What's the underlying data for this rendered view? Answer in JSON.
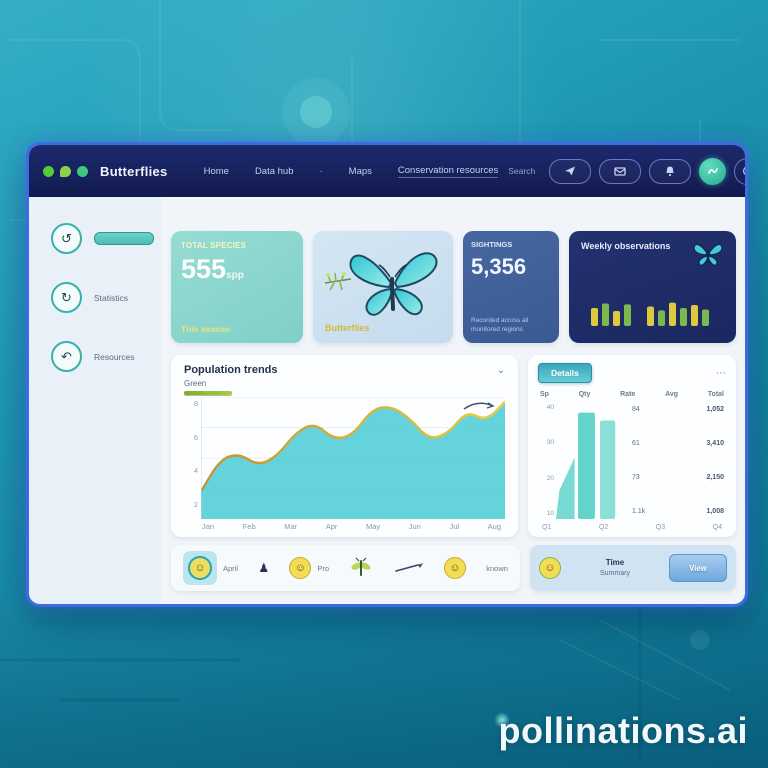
{
  "watermark": "pollinations.ai",
  "navbar": {
    "logo": "Butterflies",
    "links": [
      {
        "label": "Home"
      },
      {
        "label": "Data hub"
      },
      {
        "label": "·"
      },
      {
        "label": "Maps"
      },
      {
        "label": "Conservation resources"
      }
    ],
    "search_label": "Search"
  },
  "sidebar": {
    "items": [
      {
        "label": ""
      },
      {
        "label": "Statistics"
      },
      {
        "label": "Resources"
      }
    ]
  },
  "cards": {
    "species": {
      "title": "TOTAL SPECIES",
      "value": "555",
      "unit": "spp",
      "footer": "This season"
    },
    "butterfly": {
      "label": "Butterflies"
    },
    "sightings": {
      "title": "SIGHTINGS",
      "value": "5,356",
      "line1": "Recorded across all",
      "line2": "monitored regions"
    },
    "weekly": {
      "title": "Weekly observations"
    }
  },
  "chart_panel": {
    "title": "Population trends",
    "legend": "Green",
    "menu_icon": "⌄"
  },
  "right_panel": {
    "button": "Details",
    "menu_icon": "⋯",
    "headers": [
      "Sp",
      "Qty",
      "Rate",
      "Avg",
      "Total"
    ],
    "ylabels": [
      "40",
      "30",
      "20",
      "10"
    ],
    "rows": [
      [
        "84",
        "1,052"
      ],
      [
        "61",
        "3,410"
      ],
      [
        "73",
        "2,150"
      ],
      [
        "1.1k",
        "1,008"
      ]
    ],
    "footer": [
      "Q1",
      "Q2",
      "Q3",
      "Q4"
    ]
  },
  "footer_bar": {
    "items": [
      {
        "label": "April"
      },
      {
        "label": "♟"
      },
      {
        "label": "Pro"
      },
      {
        "label": "known"
      }
    ]
  },
  "summary_bar": {
    "line1": "Time",
    "line2": "Summary",
    "button": "View"
  },
  "chart_data": [
    {
      "type": "area",
      "title": "Population trends",
      "legend": [
        "Green"
      ],
      "categories": [
        "Jan",
        "Feb",
        "Mar",
        "Apr",
        "May",
        "Jun",
        "Jul",
        "Aug"
      ],
      "yticks": [
        "8",
        "6",
        "4",
        "2"
      ],
      "ylim": [
        0,
        8
      ],
      "points": [
        1.8,
        3.9,
        4.3,
        3.5,
        4.1,
        5.7,
        6.3,
        5.2,
        5.5,
        7.2,
        7.4,
        6.6,
        5.2,
        5.6,
        7.1,
        6.4,
        7.7
      ],
      "fill_color": "#57cfd8",
      "line_colors": [
        "#c98f2e",
        "#e8cf3f"
      ],
      "grid": true,
      "legend_position": "top-left"
    },
    {
      "type": "bar",
      "values": [
        55,
        95,
        88
      ],
      "color": "#62d4cb",
      "ylim": [
        0,
        100
      ]
    },
    {
      "type": "bar",
      "values": [
        60,
        75,
        50,
        72,
        null,
        65,
        52,
        78,
        60,
        70,
        55
      ],
      "colors": [
        "#ddc83e",
        "#7cb84e"
      ],
      "ylim": [
        0,
        100
      ]
    }
  ]
}
